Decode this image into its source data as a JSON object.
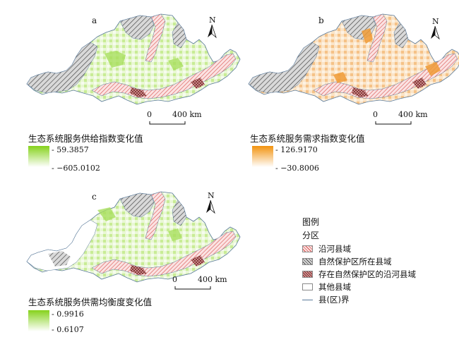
{
  "panels": [
    {
      "letter": "a",
      "legend_title": "生态系统服务供给指数变化值",
      "max": "59.3857",
      "min": "−605.0102",
      "ramp_high": "#86d21c",
      "ramp_low": "#ffffff"
    },
    {
      "letter": "b",
      "legend_title": "生态系统服务需求指数变化值",
      "max": "126.9170",
      "min": "−30.8006",
      "ramp_high": "#f2930f",
      "ramp_low": "#ffffff"
    },
    {
      "letter": "c",
      "legend_title": "生态系统服务供需均衡度变化值",
      "max": "0.9916",
      "min": "0.6107",
      "ramp_high": "#86d21c",
      "ramp_low": "#ffffff"
    }
  ],
  "north_label": "N",
  "scale": {
    "zero": "0",
    "distance": "400 km"
  },
  "key": {
    "title": "图例",
    "subtitle": "分区",
    "items": [
      {
        "label": "沿河县域",
        "pattern": "red-hatch"
      },
      {
        "label": "自然保护区所在县域",
        "pattern": "gray-hatch"
      },
      {
        "label": "存在自然保护区的沿河县域",
        "pattern": "red-crosshatch"
      },
      {
        "label": "其他县域",
        "pattern": "blank"
      },
      {
        "label": "县(区)界",
        "pattern": "line"
      }
    ]
  },
  "colors": {
    "green": "#86d21c",
    "orange": "#f2930f",
    "hatch_gray": "#555555",
    "hatch_red": "#d9534f",
    "boundary": "#5a7a9a"
  }
}
